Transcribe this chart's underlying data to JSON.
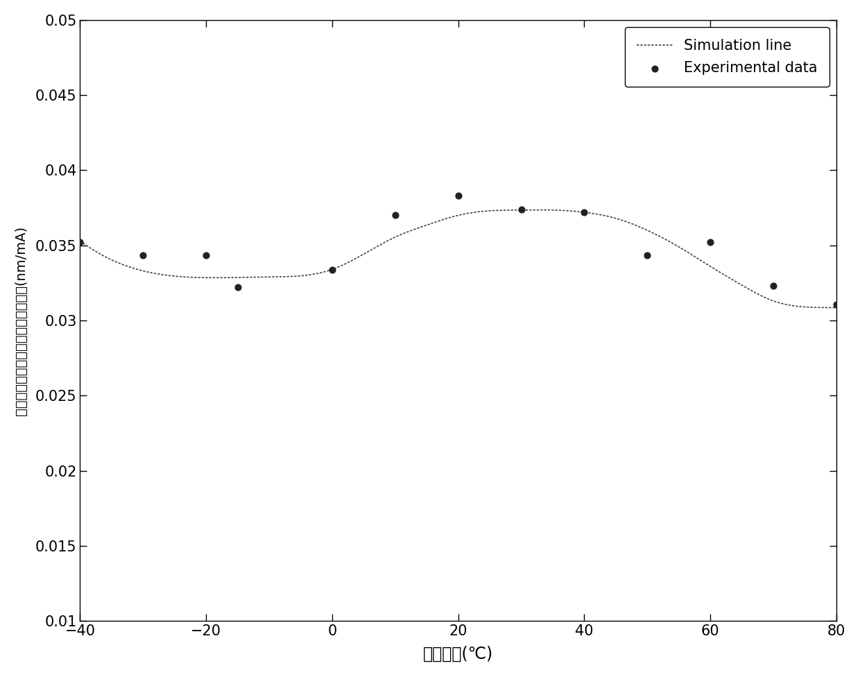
{
  "exp_x": [
    -40,
    -30,
    -20,
    -15,
    0,
    10,
    20,
    30,
    40,
    50,
    60,
    70,
    80
  ],
  "exp_y": [
    0.0352,
    0.03435,
    0.03435,
    0.0322,
    0.03335,
    0.037,
    0.0383,
    0.0374,
    0.0372,
    0.03435,
    0.0352,
    0.0323,
    0.03105
  ],
  "sim_knots_x": [
    -40,
    -30,
    -20,
    -10,
    0,
    10,
    15,
    20,
    25,
    30,
    35,
    40,
    45,
    50,
    55,
    60,
    65,
    70,
    75,
    80
  ],
  "sim_knots_y": [
    0.0353,
    0.0333,
    0.03285,
    0.0329,
    0.0334,
    0.03555,
    0.03635,
    0.037,
    0.0373,
    0.03735,
    0.03735,
    0.0372,
    0.0368,
    0.036,
    0.0349,
    0.0336,
    0.03235,
    0.0313,
    0.0309,
    0.03085
  ],
  "xlabel": "光源温度(℃)",
  "ylabel": "平均波长随泵浦激光器电流变化系数(nm/mA)",
  "xlim": [
    -40,
    80
  ],
  "ylim": [
    0.01,
    0.05
  ],
  "xticks": [
    -40,
    -20,
    0,
    20,
    40,
    60,
    80
  ],
  "yticks": [
    0.01,
    0.015,
    0.02,
    0.025,
    0.03,
    0.035,
    0.04,
    0.045,
    0.05
  ],
  "ytick_labels": [
    "0.01",
    "0.015",
    "0.02",
    "0.025",
    "0.03",
    "0.035",
    "0.04",
    "0.045",
    "0.05"
  ],
  "legend_exp": "Experimental data",
  "legend_sim": "Simulation line",
  "line_color": "#444444",
  "dot_color": "#222222",
  "background_color": "#ffffff"
}
